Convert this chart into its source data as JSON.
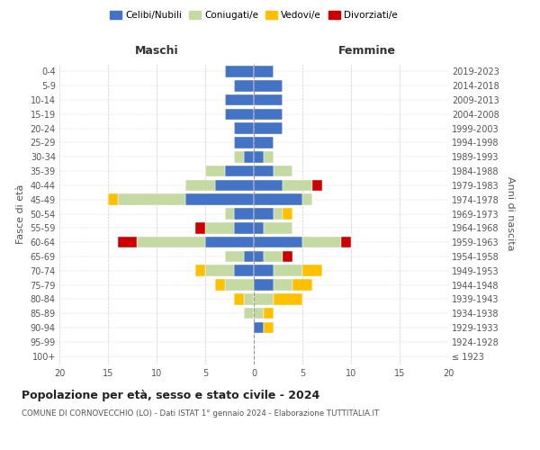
{
  "age_groups": [
    "100+",
    "95-99",
    "90-94",
    "85-89",
    "80-84",
    "75-79",
    "70-74",
    "65-69",
    "60-64",
    "55-59",
    "50-54",
    "45-49",
    "40-44",
    "35-39",
    "30-34",
    "25-29",
    "20-24",
    "15-19",
    "10-14",
    "5-9",
    "0-4"
  ],
  "birth_years": [
    "≤ 1923",
    "1924-1928",
    "1929-1933",
    "1934-1938",
    "1939-1943",
    "1944-1948",
    "1949-1953",
    "1954-1958",
    "1959-1963",
    "1964-1968",
    "1969-1973",
    "1974-1978",
    "1979-1983",
    "1984-1988",
    "1989-1993",
    "1994-1998",
    "1999-2003",
    "2004-2008",
    "2009-2013",
    "2014-2018",
    "2019-2023"
  ],
  "maschi": {
    "celibi": [
      0,
      0,
      0,
      0,
      0,
      0,
      2,
      1,
      5,
      2,
      2,
      7,
      4,
      3,
      1,
      2,
      2,
      3,
      3,
      2,
      3
    ],
    "coniugati": [
      0,
      0,
      0,
      1,
      1,
      3,
      3,
      2,
      7,
      3,
      1,
      7,
      3,
      2,
      1,
      0,
      0,
      0,
      0,
      0,
      0
    ],
    "vedovi": [
      0,
      0,
      0,
      0,
      1,
      1,
      1,
      0,
      0,
      0,
      0,
      1,
      0,
      0,
      0,
      0,
      0,
      0,
      0,
      0,
      0
    ],
    "divorziati": [
      0,
      0,
      0,
      0,
      0,
      0,
      0,
      0,
      2,
      1,
      0,
      0,
      0,
      0,
      0,
      0,
      0,
      0,
      0,
      0,
      0
    ]
  },
  "femmine": {
    "nubili": [
      0,
      0,
      1,
      0,
      0,
      2,
      2,
      1,
      5,
      1,
      2,
      5,
      3,
      2,
      1,
      2,
      3,
      3,
      3,
      3,
      2
    ],
    "coniugate": [
      0,
      0,
      0,
      1,
      2,
      2,
      3,
      2,
      4,
      3,
      1,
      1,
      3,
      2,
      1,
      0,
      0,
      0,
      0,
      0,
      0
    ],
    "vedove": [
      0,
      0,
      1,
      1,
      3,
      2,
      2,
      0,
      0,
      0,
      1,
      0,
      0,
      0,
      0,
      0,
      0,
      0,
      0,
      0,
      0
    ],
    "divorziate": [
      0,
      0,
      0,
      0,
      0,
      0,
      0,
      1,
      1,
      0,
      0,
      0,
      1,
      0,
      0,
      0,
      0,
      0,
      0,
      0,
      0
    ]
  },
  "colors": {
    "celibi": "#4472c4",
    "coniugati": "#c5d9a3",
    "vedovi": "#ffc000",
    "divorziati": "#cc0000"
  },
  "legend_labels": [
    "Celibi/Nubili",
    "Coniugati/e",
    "Vedovi/e",
    "Divorziati/e"
  ],
  "title1": "Popolazione per età, sesso e stato civile - 2024",
  "title2": "COMUNE DI CORNOVECCHIO (LO) - Dati ISTAT 1° gennaio 2024 - Elaborazione TUTTITALIA.IT",
  "xlabel_left": "Maschi",
  "xlabel_right": "Femmine",
  "ylabel_left": "Fasce di età",
  "ylabel_right": "Anni di nascita",
  "xlim": 20,
  "background": "#ffffff",
  "grid_color": "#cccccc"
}
